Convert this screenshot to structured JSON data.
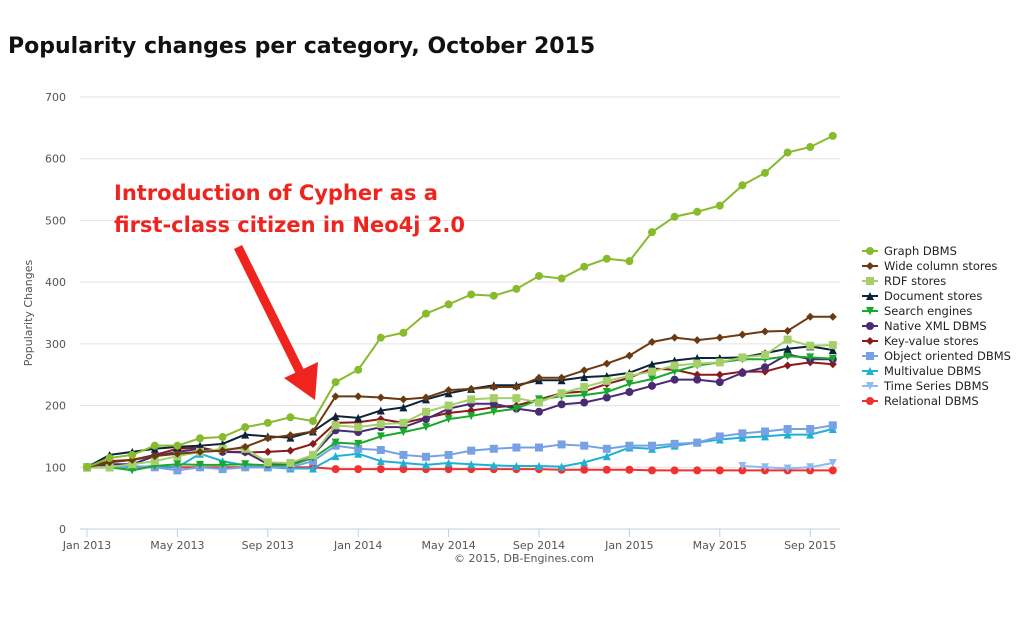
{
  "chart_data": {
    "type": "line",
    "title": "Popularity changes per category, October 2015",
    "ylabel": "Popularity Changes",
    "xlabel": "",
    "ylim": [
      0,
      700
    ],
    "yticks": [
      0,
      100,
      200,
      300,
      400,
      500,
      600,
      700
    ],
    "xticks": [
      "Jan 2013",
      "May 2013",
      "Sep 2013",
      "Jan 2014",
      "May 2014",
      "Sep 2014",
      "Jan 2015",
      "May 2015",
      "Sep 2015"
    ],
    "x_start": "Jan 2013",
    "x_end": "Oct 2015",
    "grid": true,
    "legend_position": "right",
    "credits": "© 2015, DB-Engines.com",
    "annotation": {
      "lines": [
        "Introduction of Cypher as a",
        "first-class citizen in Neo4j 2.0"
      ],
      "color": "#f0241f",
      "points_to": "Nov 2013"
    },
    "series": [
      {
        "name": "Graph DBMS",
        "color": "#88bb2c",
        "marker": "circle",
        "values": [
          100,
          115,
          120,
          135,
          135,
          147,
          149,
          165,
          172,
          181,
          175,
          238,
          258,
          310,
          318,
          349,
          364,
          380,
          378,
          389,
          410,
          406,
          425,
          438,
          434,
          481,
          506,
          514,
          524,
          557,
          577,
          610,
          619,
          637
        ]
      },
      {
        "name": "Wide column stores",
        "color": "#6b3a12",
        "marker": "diamond",
        "values": [
          100,
          108,
          112,
          118,
          122,
          125,
          127,
          133,
          147,
          152,
          158,
          215,
          215,
          213,
          210,
          213,
          225,
          227,
          230,
          230,
          245,
          245,
          257,
          268,
          281,
          303,
          310,
          306,
          310,
          315,
          320,
          321,
          344,
          344
        ]
      },
      {
        "name": "RDF stores",
        "color": "#a5cf6a",
        "marker": "square",
        "values": [
          100,
          100,
          105,
          110,
          118,
          125,
          130,
          130,
          108,
          107,
          120,
          168,
          165,
          170,
          172,
          190,
          200,
          210,
          212,
          212,
          205,
          220,
          230,
          240,
          248,
          255,
          265,
          268,
          270,
          278,
          282,
          307,
          297,
          298
        ]
      },
      {
        "name": "Document stores",
        "color": "#0d233a",
        "marker": "triangle",
        "values": [
          100,
          120,
          125,
          130,
          133,
          135,
          138,
          153,
          150,
          148,
          158,
          183,
          180,
          192,
          197,
          210,
          220,
          227,
          233,
          233,
          241,
          241,
          246,
          248,
          253,
          267,
          273,
          277,
          277,
          278,
          285,
          292,
          296,
          290
        ]
      },
      {
        "name": "Search engines",
        "color": "#1aa82c",
        "marker": "triangle-down",
        "values": [
          100,
          100,
          95,
          102,
          105,
          104,
          104,
          105,
          103,
          103,
          115,
          140,
          138,
          150,
          157,
          165,
          178,
          183,
          190,
          195,
          210,
          215,
          217,
          222,
          235,
          243,
          255,
          265,
          270,
          275,
          275,
          280,
          278,
          276
        ]
      },
      {
        "name": "Native XML DBMS",
        "color": "#4b2a75",
        "marker": "circle",
        "values": [
          100,
          105,
          105,
          118,
          125,
          130,
          125,
          125,
          105,
          105,
          120,
          160,
          157,
          165,
          165,
          178,
          195,
          203,
          203,
          195,
          190,
          202,
          205,
          213,
          222,
          232,
          242,
          242,
          238,
          253,
          262,
          283,
          275,
          275
        ]
      },
      {
        "name": "Key-value stores",
        "color": "#8b1a1a",
        "marker": "diamond",
        "values": [
          100,
          110,
          112,
          120,
          130,
          132,
          125,
          124,
          125,
          127,
          138,
          172,
          173,
          178,
          172,
          180,
          188,
          192,
          197,
          200,
          210,
          220,
          223,
          235,
          245,
          260,
          258,
          250,
          250,
          255,
          255,
          265,
          270,
          267
        ]
      },
      {
        "name": "Object oriented DBMS",
        "color": "#77a1e5",
        "marker": "square",
        "values": [
          100,
          100,
          102,
          100,
          95,
          100,
          97,
          100,
          100,
          100,
          110,
          135,
          130,
          128,
          120,
          117,
          120,
          127,
          130,
          132,
          132,
          137,
          135,
          130,
          135,
          135,
          138,
          140,
          150,
          155,
          158,
          162,
          162,
          168
        ]
      },
      {
        "name": "Multivalue DBMS",
        "color": "#1fb0d4",
        "marker": "triangle",
        "values": [
          100,
          100,
          100,
          102,
          100,
          122,
          110,
          103,
          100,
          98,
          98,
          118,
          122,
          110,
          107,
          104,
          107,
          105,
          103,
          102,
          102,
          101,
          108,
          118,
          132,
          130,
          135,
          140,
          145,
          148,
          150,
          153,
          153,
          162
        ]
      },
      {
        "name": "Time Series DBMS",
        "color": "#8bbcf0",
        "marker": "triangle-down",
        "values": [
          null,
          null,
          null,
          null,
          null,
          null,
          null,
          null,
          null,
          null,
          null,
          null,
          null,
          null,
          null,
          null,
          null,
          null,
          null,
          null,
          null,
          null,
          null,
          null,
          null,
          null,
          null,
          null,
          null,
          102,
          100,
          98,
          100,
          107
        ]
      },
      {
        "name": "Relational DBMS",
        "color": "#f23030",
        "marker": "circle",
        "values": [
          100,
          100,
          100,
          100,
          100,
          100,
          100,
          100,
          100,
          100,
          100,
          97,
          97,
          97,
          97,
          97,
          97,
          97,
          97,
          97,
          97,
          96,
          96,
          96,
          96,
          95,
          95,
          95,
          95,
          95,
          95,
          95,
          95,
          95
        ]
      }
    ]
  }
}
